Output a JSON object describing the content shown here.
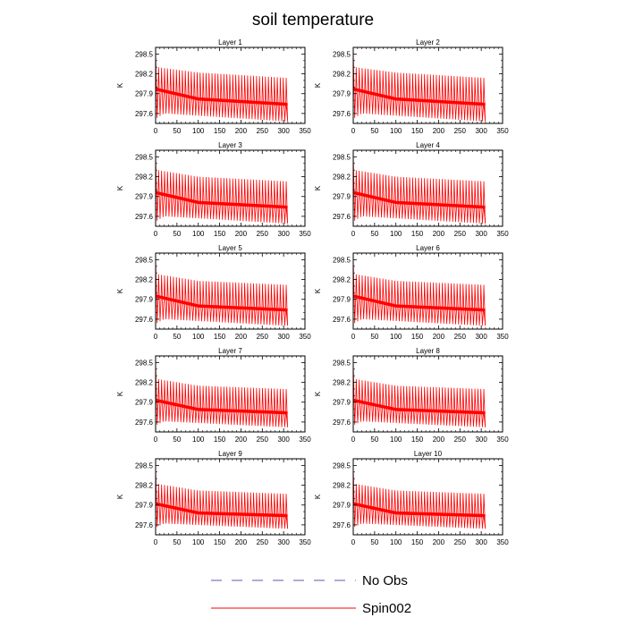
{
  "figure": {
    "title": "soil temperature"
  },
  "chart_data": {
    "type": "line",
    "title": "soil temperature",
    "ylabel": "K",
    "xlim": [
      0,
      350
    ],
    "ylim": [
      297.45,
      298.6
    ],
    "xticks": [
      0,
      50,
      100,
      150,
      200,
      250,
      300,
      350
    ],
    "xtick_labels": [
      "0",
      "50",
      "100",
      "150",
      "200",
      "250",
      "300",
      "350"
    ],
    "yticks": [
      297.6,
      297.9,
      298.2,
      298.5
    ],
    "ytick_labels": [
      "297.6",
      "297.9",
      "298.2",
      "298.5"
    ],
    "series_style": {
      "No Obs": {
        "color": "#5a5ab4",
        "dash": "dashed"
      },
      "Spin002": {
        "color": "#ff0000",
        "dash": "solid"
      }
    },
    "spin002_envelope": {
      "x_end": 306,
      "cycles": 44
    },
    "panels": [
      {
        "title": "Layer 1",
        "upper": [
          [
            0,
            298.55
          ],
          [
            5,
            298.3
          ],
          [
            100,
            298.22
          ],
          [
            306,
            298.14
          ]
        ],
        "mean": [
          [
            0,
            297.97
          ],
          [
            100,
            297.82
          ],
          [
            306,
            297.74
          ]
        ],
        "lower": [
          [
            0,
            297.52
          ],
          [
            20,
            297.6
          ],
          [
            306,
            297.48
          ]
        ]
      },
      {
        "title": "Layer 2",
        "upper": [
          [
            0,
            298.55
          ],
          [
            5,
            298.3
          ],
          [
            100,
            298.22
          ],
          [
            306,
            298.14
          ]
        ],
        "mean": [
          [
            0,
            297.97
          ],
          [
            100,
            297.82
          ],
          [
            306,
            297.74
          ]
        ],
        "lower": [
          [
            0,
            297.52
          ],
          [
            20,
            297.6
          ],
          [
            306,
            297.48
          ]
        ]
      },
      {
        "title": "Layer 3",
        "upper": [
          [
            0,
            298.55
          ],
          [
            5,
            298.3
          ],
          [
            100,
            298.2
          ],
          [
            306,
            298.13
          ]
        ],
        "mean": [
          [
            0,
            297.96
          ],
          [
            100,
            297.81
          ],
          [
            306,
            297.74
          ]
        ],
        "lower": [
          [
            0,
            297.52
          ],
          [
            20,
            297.6
          ],
          [
            306,
            297.49
          ]
        ]
      },
      {
        "title": "Layer 4",
        "upper": [
          [
            0,
            298.55
          ],
          [
            5,
            298.3
          ],
          [
            100,
            298.2
          ],
          [
            306,
            298.13
          ]
        ],
        "mean": [
          [
            0,
            297.96
          ],
          [
            100,
            297.81
          ],
          [
            306,
            297.74
          ]
        ],
        "lower": [
          [
            0,
            297.52
          ],
          [
            20,
            297.6
          ],
          [
            306,
            297.49
          ]
        ]
      },
      {
        "title": "Layer 5",
        "upper": [
          [
            0,
            298.52
          ],
          [
            5,
            298.28
          ],
          [
            100,
            298.18
          ],
          [
            306,
            298.12
          ]
        ],
        "mean": [
          [
            0,
            297.95
          ],
          [
            100,
            297.8
          ],
          [
            306,
            297.74
          ]
        ],
        "lower": [
          [
            0,
            297.53
          ],
          [
            20,
            297.6
          ],
          [
            306,
            297.5
          ]
        ]
      },
      {
        "title": "Layer 6",
        "upper": [
          [
            0,
            298.52
          ],
          [
            5,
            298.28
          ],
          [
            100,
            298.18
          ],
          [
            306,
            298.12
          ]
        ],
        "mean": [
          [
            0,
            297.95
          ],
          [
            100,
            297.8
          ],
          [
            306,
            297.74
          ]
        ],
        "lower": [
          [
            0,
            297.53
          ],
          [
            20,
            297.6
          ],
          [
            306,
            297.5
          ]
        ]
      },
      {
        "title": "Layer 7",
        "upper": [
          [
            0,
            298.5
          ],
          [
            5,
            298.25
          ],
          [
            100,
            298.15
          ],
          [
            306,
            298.1
          ]
        ],
        "mean": [
          [
            0,
            297.93
          ],
          [
            100,
            297.79
          ],
          [
            306,
            297.74
          ]
        ],
        "lower": [
          [
            0,
            297.55
          ],
          [
            20,
            297.61
          ],
          [
            306,
            297.52
          ]
        ]
      },
      {
        "title": "Layer 8",
        "upper": [
          [
            0,
            298.5
          ],
          [
            5,
            298.25
          ],
          [
            100,
            298.15
          ],
          [
            306,
            298.1
          ]
        ],
        "mean": [
          [
            0,
            297.93
          ],
          [
            100,
            297.79
          ],
          [
            306,
            297.74
          ]
        ],
        "lower": [
          [
            0,
            297.55
          ],
          [
            20,
            297.61
          ],
          [
            306,
            297.52
          ]
        ]
      },
      {
        "title": "Layer 9",
        "upper": [
          [
            0,
            298.48
          ],
          [
            5,
            298.22
          ],
          [
            100,
            298.12
          ],
          [
            306,
            298.07
          ]
        ],
        "mean": [
          [
            0,
            297.92
          ],
          [
            100,
            297.78
          ],
          [
            306,
            297.74
          ]
        ],
        "lower": [
          [
            0,
            297.56
          ],
          [
            20,
            297.62
          ],
          [
            306,
            297.54
          ]
        ]
      },
      {
        "title": "Layer 10",
        "upper": [
          [
            0,
            298.48
          ],
          [
            5,
            298.22
          ],
          [
            100,
            298.12
          ],
          [
            306,
            298.07
          ]
        ],
        "mean": [
          [
            0,
            297.92
          ],
          [
            100,
            297.78
          ],
          [
            306,
            297.74
          ]
        ],
        "lower": [
          [
            0,
            297.56
          ],
          [
            20,
            297.62
          ],
          [
            306,
            297.54
          ]
        ]
      }
    ],
    "legend": {
      "placement": "bottom-center",
      "entries": [
        {
          "label": "No Obs",
          "style": "dashed",
          "color": "#5a5ab4"
        },
        {
          "label": "Spin002",
          "style": "solid",
          "color": "#ff0000"
        }
      ]
    }
  }
}
